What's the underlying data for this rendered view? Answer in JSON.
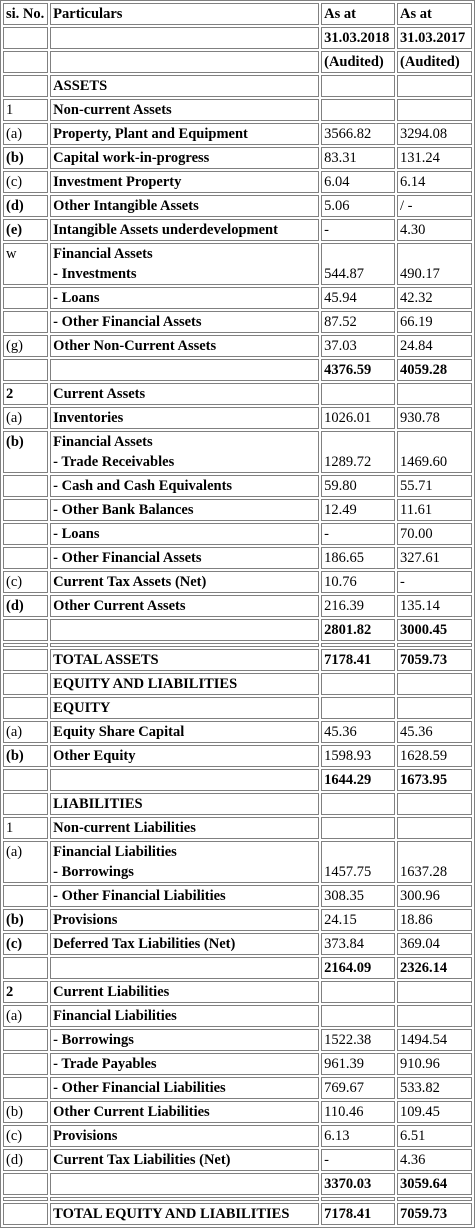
{
  "header": {
    "sno": "si. No.",
    "particulars": "Particulars",
    "col1": "As at",
    "col2": "As at",
    "date1": "31.03.2018",
    "date2": "31.03.2017",
    "aud1": "(Audited)",
    "aud2": "(Audited)"
  },
  "rows": [
    {
      "sn": "",
      "p": "ASSETS",
      "a": "",
      "b": ""
    },
    {
      "sn": "1",
      "p": "Non-current Assets",
      "a": "",
      "b": ""
    },
    {
      "sn": "(a)",
      "p": "Property, Plant and Equipment",
      "a": "3566.82",
      "b": "3294.08"
    },
    {
      "sn": "(b)",
      "p": "Capital work-in-progress",
      "a": "83.31",
      "b": "131.24"
    },
    {
      "sn": "(c)",
      "p": "Investment Property",
      "a": "6.04",
      "b": "6.14"
    },
    {
      "sn": "(d)",
      "p": "Other Intangible Assets",
      "a": "5.06",
      "b": "/ -"
    },
    {
      "sn": "(e)",
      "p": "Intangible Assets underdevelopment",
      "a": "-",
      "b": "4.30"
    },
    {
      "sn": "w",
      "p": "Financial Assets",
      "p2": "- Investments",
      "a": "544.87",
      "b": "490.17"
    },
    {
      "sn": "",
      "p": "- Loans",
      "a": "45.94",
      "b": "42.32"
    },
    {
      "sn": "",
      "p": "- Other Financial Assets",
      "a": "87.52",
      "b": "66.19"
    },
    {
      "sn": "(g)",
      "p": "Other Non-Current Assets",
      "a": "37.03",
      "b": "24.84"
    },
    {
      "sn": "",
      "p": "",
      "a": "4376.59",
      "b": "4059.28"
    },
    {
      "sn": "2",
      "p": "Current Assets",
      "a": "",
      "b": ""
    },
    {
      "sn": "(a)",
      "p": "Inventories",
      "a": "1026.01",
      "b": "930.78"
    },
    {
      "sn": "(b)",
      "p": "Financial Assets",
      "p2": "- Trade Receivables",
      "a": "1289.72",
      "b": "1469.60"
    },
    {
      "sn": "",
      "p": "- Cash and Cash Equivalents",
      "a": "59.80",
      "b": "55.71"
    },
    {
      "sn": "",
      "p": "- Other Bank Balances",
      "a": "12.49",
      "b": "11.61"
    },
    {
      "sn": "",
      "p": "- Loans",
      "a": "-",
      "b": "70.00"
    },
    {
      "sn": "",
      "p": "- Other Financial Assets",
      "a": "186.65",
      "b": "327.61"
    },
    {
      "sn": "(c)",
      "p": "Current Tax Assets (Net)",
      "a": "10.76",
      "b": "-"
    },
    {
      "sn": "(d)",
      "p": "Other Current Assets",
      "a": "216.39",
      "b": "135.14"
    },
    {
      "sn": "",
      "p": "",
      "a": "2801.82",
      "b": "3000.45"
    },
    {
      "sn": "",
      "p": "TOTAL ASSETS",
      "a": "7178.41",
      "b": "7059.73"
    },
    {
      "sn": "",
      "p": "EQUITY AND LIABILITIES",
      "a": "",
      "b": ""
    },
    {
      "sn": "",
      "p": "EQUITY",
      "a": "",
      "b": ""
    },
    {
      "sn": "(a)",
      "p": "Equity Share Capital",
      "a": "45.36",
      "b": "45.36"
    },
    {
      "sn": "(b)",
      "p": "Other Equity",
      "a": "1598.93",
      "b": "1628.59"
    },
    {
      "sn": "",
      "p": "",
      "a": "1644.29",
      "b": "1673.95"
    },
    {
      "sn": "",
      "p": "LIABILITIES",
      "a": "",
      "b": ""
    },
    {
      "sn": "1",
      "p": "Non-current Liabilities",
      "a": "",
      "b": ""
    },
    {
      "sn": "(a)",
      "p": "Financial Liabilities",
      "p2": "- Borrowings",
      "a": "1457.75",
      "b": "1637.28"
    },
    {
      "sn": "",
      "p": "- Other Financial Liabilities",
      "a": "308.35",
      "b": "300.96"
    },
    {
      "sn": "(b)",
      "p": "Provisions",
      "a": "24.15",
      "b": "18.86"
    },
    {
      "sn": "(c)",
      "p": "Deferred Tax Liabilities (Net)",
      "a": "373.84",
      "b": "369.04"
    },
    {
      "sn": "",
      "p": "",
      "a": "2164.09",
      "b": "2326.14"
    },
    {
      "sn": "2",
      "p": "Current Liabilities",
      "a": "",
      "b": ""
    },
    {
      "sn": "(a)",
      "p": "Financial Liabilities",
      "a": "",
      "b": ""
    },
    {
      "sn": "",
      "p": "- Borrowings",
      "a": "1522.38",
      "b": "1494.54"
    },
    {
      "sn": "",
      "p": "- Trade Payables",
      "a": "961.39",
      "b": "910.96"
    },
    {
      "sn": "",
      "p": "- Other Financial Liabilities",
      "a": "769.67",
      "b": "533.82"
    },
    {
      "sn": "(b)",
      "p": "Other Current Liabilities",
      "a": "110.46",
      "b": "109.45"
    },
    {
      "sn": "(c)",
      "p": "Provisions",
      "a": "6.13",
      "b": "6.51"
    },
    {
      "sn": "(d)",
      "p": "Current Tax Liabilities (Net)",
      "a": "-",
      "b": "4.36"
    },
    {
      "sn": "",
      "p": "",
      "a": "3370.03",
      "b": "3059.64"
    },
    {
      "sn": "",
      "p": "TOTAL EQUITY AND LIABILITIES",
      "a": "7178.41",
      "b": "7059.73"
    }
  ]
}
